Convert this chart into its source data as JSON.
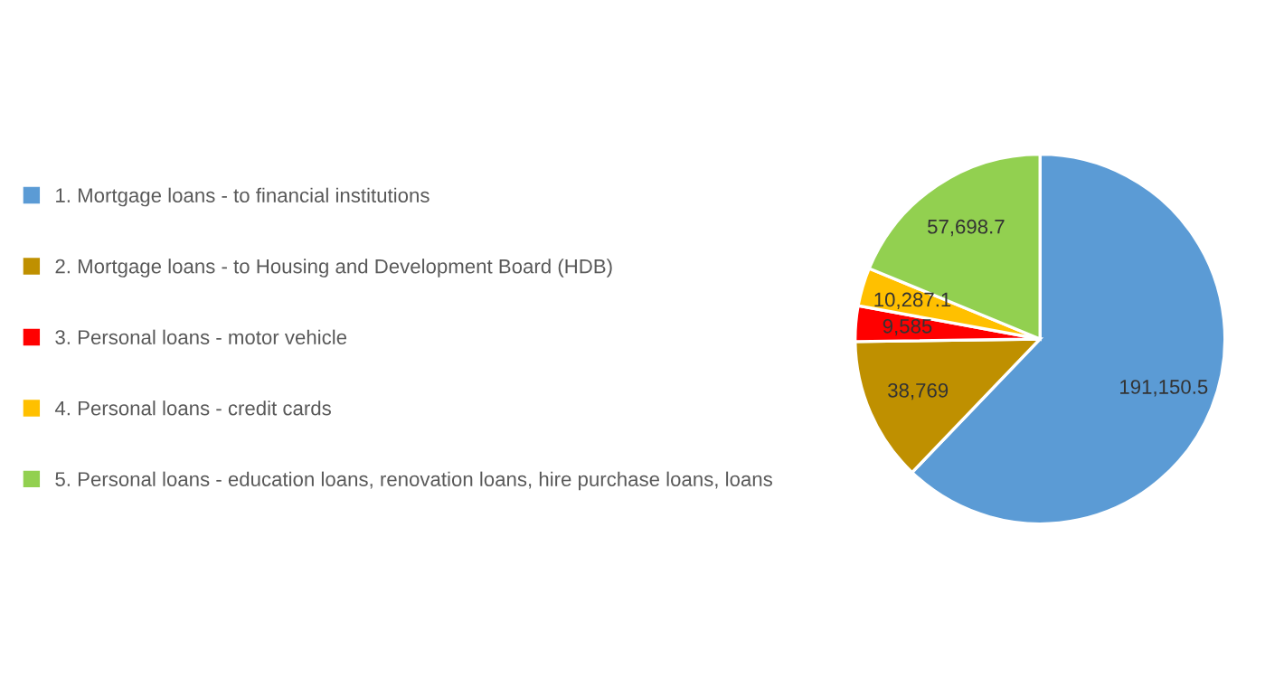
{
  "chart_data": {
    "type": "pie",
    "categories": [
      "1. Mortgage loans - to financial institutions",
      "2. Mortgage loans - to Housing and Development Board (HDB)",
      "3. Personal loans - motor vehicle",
      "4. Personal loans - credit cards",
      "5. Personal loans - education loans, renovation loans, hire purchase loans, loans"
    ],
    "values": [
      191150.5,
      38769,
      9585,
      10287.1,
      57698.7
    ],
    "colors": [
      "#5b9bd5",
      "#bf9000",
      "#ff0000",
      "#ffc000",
      "#92d050"
    ],
    "value_labels": [
      "191,150.5",
      "38,769",
      "9,585",
      "10,287.1",
      "57,698.7"
    ],
    "legend": "left"
  }
}
